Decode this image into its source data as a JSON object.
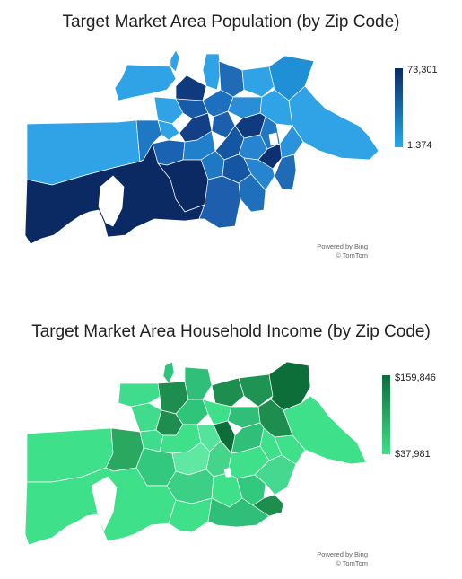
{
  "maps": [
    {
      "title": "Target Market Area Population (by Zip Code)",
      "legend": {
        "max_label": "73,301",
        "min_label": "1,374",
        "max_color": "#0b2a63",
        "min_color": "#28a9ec"
      },
      "attribution": {
        "line1": "Powered by Bing",
        "line2": "© TomTom"
      }
    },
    {
      "title": "Target Market Area Household Income (by Zip Code)",
      "legend": {
        "max_label": "$159,846",
        "min_label": "$37,981",
        "max_color": "#0e6e3a",
        "min_color": "#3ee089"
      },
      "attribution": {
        "line1": "Powered by Bing",
        "line2": "© TomTom"
      }
    }
  ]
}
